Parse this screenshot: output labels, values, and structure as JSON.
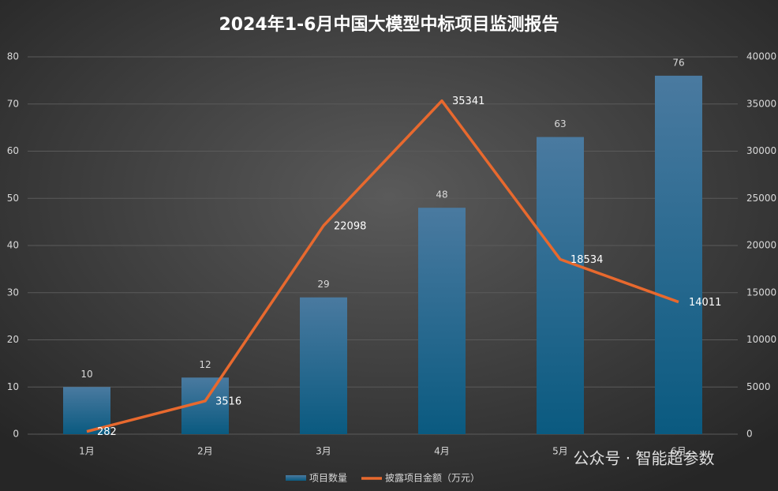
{
  "chart_data": {
    "type": "combo",
    "title": "2024年1-6月中国大模型中标项目监测报告",
    "categories": [
      "1月",
      "2月",
      "3月",
      "4月",
      "5月",
      "6月"
    ],
    "series": [
      {
        "name": "项目数量",
        "type": "bar",
        "color": "#1b6a93",
        "values": [
          10,
          12,
          29,
          48,
          63,
          76
        ]
      },
      {
        "name": "披露项目金额（万元）",
        "type": "line",
        "axis": "y2",
        "color": "#e8692e",
        "values": [
          282,
          3516,
          22098,
          35341,
          18534,
          14011
        ]
      }
    ],
    "ylim": [
      0,
      80
    ],
    "yticks": [
      0,
      10,
      20,
      30,
      40,
      50,
      60,
      70,
      80
    ],
    "y2lim": [
      0,
      40000
    ],
    "y2ticks": [
      0,
      5000,
      10000,
      15000,
      20000,
      25000,
      30000,
      35000,
      40000
    ],
    "grid": true,
    "legend": "bottom",
    "watermark": "公众号 · 智能超参数"
  }
}
